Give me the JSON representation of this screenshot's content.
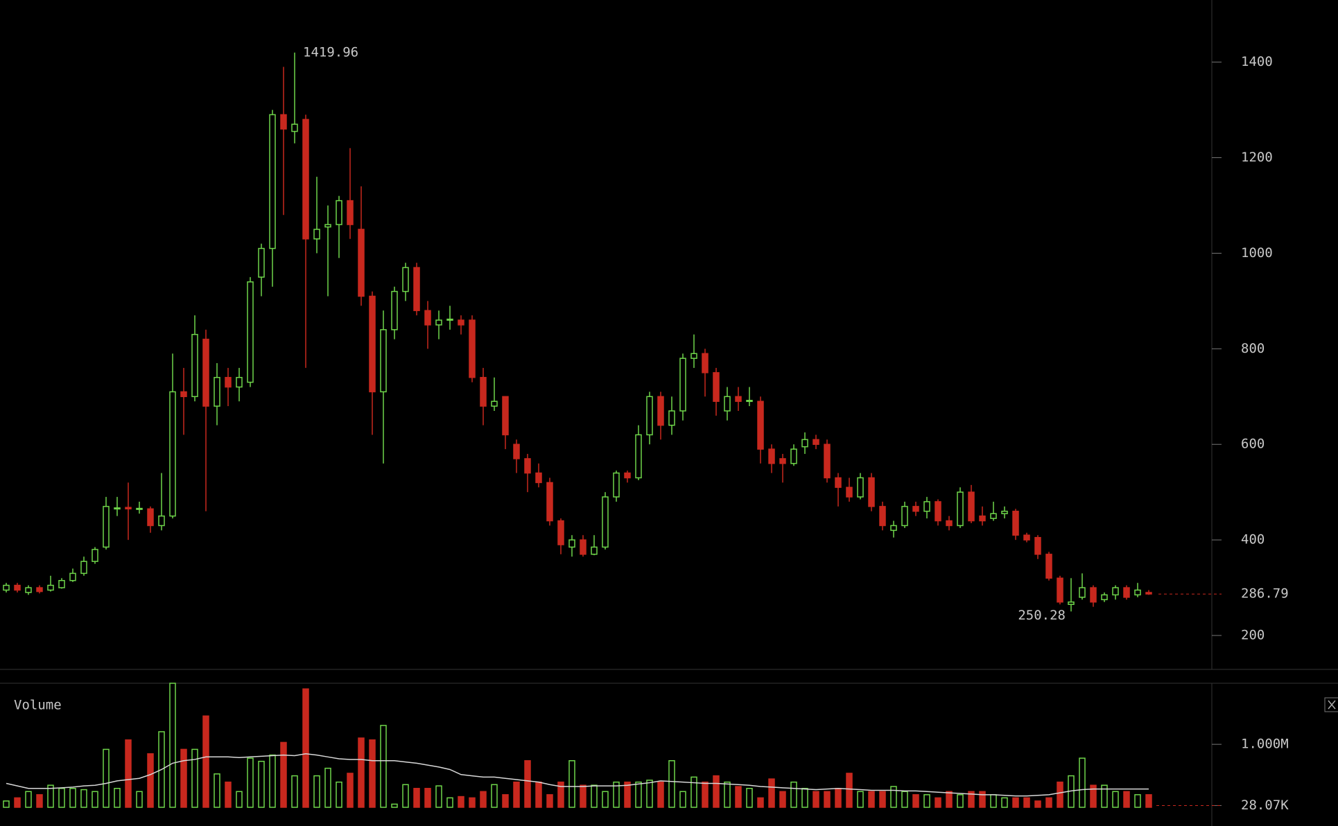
{
  "chart_data": [
    {
      "type": "candlestick",
      "up_color": "#6fd64a",
      "down_color": "#c8281e",
      "ylim": [
        129,
        1530
      ],
      "yticks": [
        200,
        400,
        600,
        800,
        1000,
        1200,
        1400
      ],
      "high_annotation": "1419.96",
      "low_annotation": "250.28",
      "last_annotation": "286.79",
      "open": [
        295,
        305,
        290,
        300,
        295,
        300,
        315,
        330,
        355,
        385,
        465,
        468,
        465,
        465,
        430,
        450,
        710,
        700,
        820,
        680,
        740,
        720,
        730,
        950,
        1010,
        1290,
        1255,
        1280,
        1030,
        1055,
        1060,
        1110,
        1050,
        910,
        710,
        840,
        920,
        970,
        880,
        850,
        860,
        860,
        860,
        740,
        680,
        700,
        600,
        570,
        540,
        520,
        440,
        385,
        400,
        370,
        385,
        490,
        540,
        530,
        620,
        700,
        640,
        670,
        780,
        790,
        750,
        670,
        700,
        690,
        690,
        590,
        570,
        560,
        595,
        610,
        600,
        530,
        510,
        490,
        530,
        470,
        420,
        430,
        470,
        460,
        480,
        440,
        430,
        500,
        450,
        445,
        455,
        460,
        410,
        405,
        370,
        320,
        265,
        280,
        300,
        275,
        285,
        300,
        285,
        290
      ],
      "high": [
        310,
        310,
        305,
        305,
        325,
        320,
        340,
        365,
        385,
        490,
        490,
        520,
        480,
        470,
        540,
        790,
        760,
        870,
        840,
        770,
        760,
        760,
        950,
        1020,
        1300,
        1390,
        1419.96,
        1290,
        1160,
        1100,
        1120,
        1220,
        1140,
        920,
        880,
        930,
        980,
        980,
        900,
        880,
        890,
        870,
        870,
        760,
        740,
        700,
        610,
        580,
        560,
        530,
        445,
        410,
        410,
        410,
        500,
        545,
        545,
        640,
        710,
        710,
        700,
        790,
        830,
        800,
        760,
        720,
        720,
        720,
        700,
        600,
        580,
        600,
        625,
        620,
        610,
        540,
        530,
        540,
        540,
        480,
        440,
        480,
        480,
        490,
        485,
        450,
        510,
        515,
        470,
        480,
        470,
        465,
        415,
        410,
        375,
        325,
        320,
        330,
        305,
        290,
        305,
        305,
        310,
        295
      ],
      "low": [
        290,
        290,
        285,
        288,
        292,
        298,
        312,
        325,
        350,
        380,
        450,
        400,
        455,
        415,
        420,
        445,
        620,
        690,
        460,
        640,
        680,
        690,
        720,
        910,
        930,
        1080,
        1230,
        760,
        1000,
        910,
        990,
        1030,
        890,
        620,
        560,
        820,
        900,
        870,
        800,
        820,
        840,
        830,
        730,
        640,
        670,
        590,
        540,
        500,
        510,
        430,
        370,
        365,
        365,
        368,
        380,
        480,
        520,
        525,
        600,
        610,
        620,
        650,
        760,
        700,
        660,
        650,
        670,
        680,
        560,
        540,
        520,
        555,
        580,
        590,
        520,
        470,
        480,
        485,
        460,
        420,
        405,
        425,
        450,
        445,
        430,
        420,
        425,
        435,
        430,
        440,
        445,
        400,
        395,
        360,
        315,
        265,
        250.28,
        275,
        260,
        270,
        275,
        275,
        280,
        285
      ],
      "close": [
        305,
        295,
        300,
        292,
        305,
        315,
        330,
        355,
        380,
        470,
        467,
        465,
        466,
        430,
        450,
        710,
        700,
        830,
        680,
        740,
        720,
        740,
        940,
        1010,
        1290,
        1260,
        1270,
        1030,
        1050,
        1060,
        1110,
        1060,
        910,
        710,
        840,
        920,
        970,
        880,
        850,
        860,
        862,
        850,
        740,
        680,
        690,
        620,
        570,
        540,
        520,
        440,
        390,
        400,
        370,
        385,
        490,
        540,
        530,
        620,
        700,
        640,
        670,
        780,
        790,
        750,
        690,
        700,
        690,
        692,
        590,
        560,
        560,
        590,
        610,
        600,
        530,
        510,
        490,
        530,
        470,
        430,
        430,
        470,
        460,
        480,
        440,
        430,
        500,
        440,
        440,
        455,
        460,
        410,
        400,
        370,
        320,
        270,
        270,
        300,
        270,
        285,
        300,
        280,
        295,
        286.79
      ]
    },
    {
      "type": "bar",
      "title": "Volume",
      "ma_color": "#d8d8d8",
      "ylim": [
        0,
        1970000
      ],
      "yticks": [
        {
          "value": 28070,
          "label": "28.07K"
        },
        {
          "value": 1000000,
          "label": "1.000M"
        }
      ],
      "values": [
        100000,
        150000,
        250000,
        200000,
        350000,
        300000,
        300000,
        280000,
        250000,
        920000,
        300000,
        1070000,
        250000,
        850000,
        1200000,
        1970000,
        920000,
        920000,
        1450000,
        530000,
        400000,
        250000,
        780000,
        730000,
        830000,
        1030000,
        500000,
        1880000,
        500000,
        620000,
        400000,
        540000,
        1100000,
        1070000,
        1300000,
        50000,
        360000,
        300000,
        300000,
        340000,
        150000,
        170000,
        150000,
        250000,
        360000,
        200000,
        400000,
        740000,
        400000,
        200000,
        400000,
        740000,
        350000,
        350000,
        250000,
        400000,
        400000,
        400000,
        430000,
        400000,
        740000,
        250000,
        480000,
        400000,
        500000,
        400000,
        330000,
        300000,
        150000,
        450000,
        250000,
        400000,
        300000,
        250000,
        250000,
        300000,
        540000,
        250000,
        250000,
        250000,
        330000,
        250000,
        200000,
        200000,
        150000,
        250000,
        200000,
        250000,
        250000,
        200000,
        150000,
        150000,
        150000,
        100000,
        150000,
        400000,
        500000,
        780000,
        350000,
        350000,
        250000,
        250000,
        200000,
        200000
      ],
      "ma": [
        380000,
        340000,
        300000,
        300000,
        300000,
        310000,
        320000,
        340000,
        350000,
        380000,
        420000,
        440000,
        460000,
        520000,
        600000,
        700000,
        740000,
        760000,
        800000,
        800000,
        800000,
        790000,
        800000,
        810000,
        820000,
        830000,
        820000,
        850000,
        830000,
        800000,
        770000,
        760000,
        760000,
        740000,
        740000,
        740000,
        720000,
        700000,
        670000,
        640000,
        600000,
        520000,
        500000,
        480000,
        480000,
        460000,
        440000,
        420000,
        400000,
        360000,
        330000,
        330000,
        330000,
        340000,
        340000,
        340000,
        350000,
        370000,
        390000,
        420000,
        410000,
        400000,
        390000,
        380000,
        380000,
        370000,
        360000,
        350000,
        330000,
        320000,
        310000,
        300000,
        290000,
        280000,
        290000,
        300000,
        290000,
        280000,
        270000,
        270000,
        270000,
        260000,
        260000,
        250000,
        240000,
        230000,
        220000,
        210000,
        200000,
        200000,
        190000,
        180000,
        180000,
        190000,
        200000,
        230000,
        260000,
        280000,
        290000,
        290000,
        290000,
        290000,
        290000,
        290000
      ]
    }
  ]
}
